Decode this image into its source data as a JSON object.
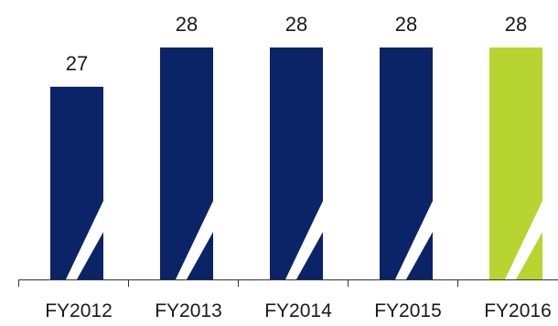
{
  "chart_data": {
    "type": "bar",
    "categories": [
      "FY2012",
      "FY2013",
      "FY2014",
      "FY2015",
      "FY2016"
    ],
    "values": [
      27,
      28,
      28,
      28,
      28
    ],
    "title": "",
    "xlabel": "",
    "ylabel": "",
    "axis_break": true,
    "grid": false,
    "colors": {
      "bar": "#0b2468",
      "highlight_bar": "#b8d430",
      "highlight_category": "FY2016",
      "axis": "#333333",
      "break_mark": "#ffffff"
    }
  }
}
